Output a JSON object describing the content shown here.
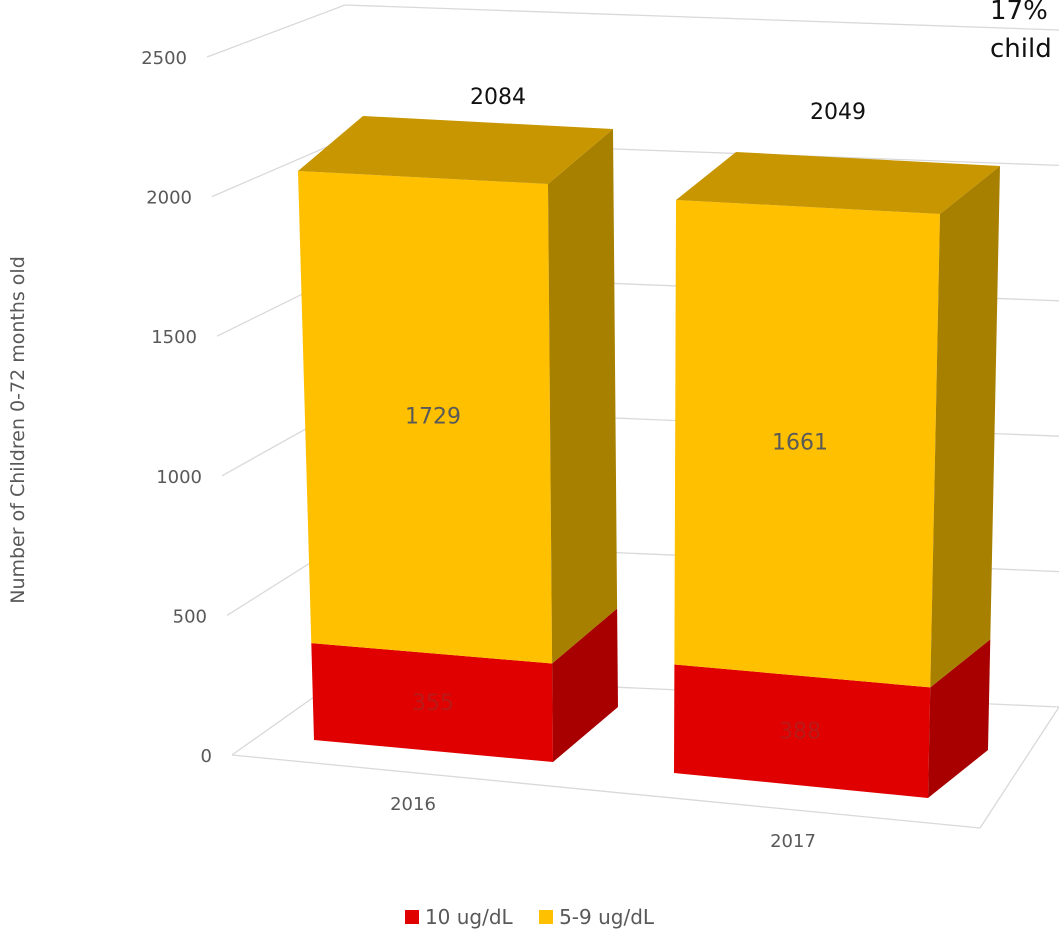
{
  "callout": {
    "line1": "17%",
    "line2": "child"
  },
  "chart_data": {
    "type": "bar",
    "stacked": true,
    "three_d": true,
    "categories": [
      "2016",
      "2017"
    ],
    "series": [
      {
        "name": "10 ug/dL",
        "values": [
          355,
          388
        ],
        "color": "#e00000"
      },
      {
        "name": "5-9 ug/dL",
        "values": [
          1729,
          1661
        ],
        "color": "#ffc000"
      }
    ],
    "totals": [
      2084,
      2049
    ],
    "yticks": [
      0,
      500,
      1000,
      1500,
      2000,
      2500
    ],
    "ylim": [
      0,
      2500
    ],
    "ylabel": "Number of Children 0-72 months old",
    "xlabel": "",
    "title": "",
    "grid": true,
    "legend_position": "bottom"
  }
}
